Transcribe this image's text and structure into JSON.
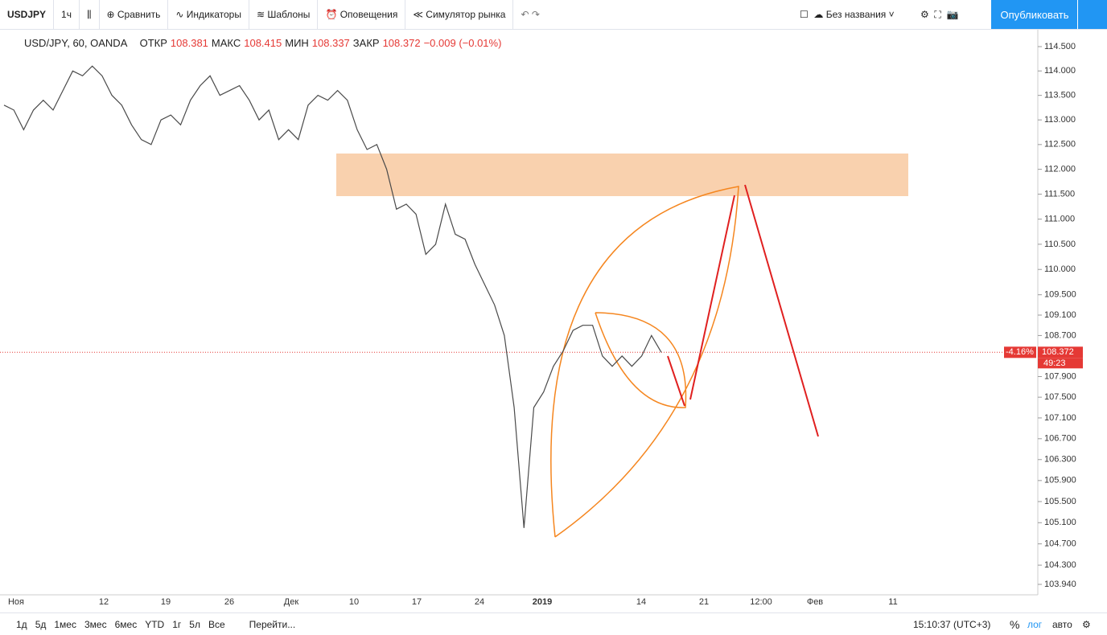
{
  "toolbar": {
    "symbol": "USDJPY",
    "interval": "1ч",
    "items": [
      "Сравнить",
      "Индикаторы",
      "Шаблоны",
      "Оповещения",
      "Симулятор рынка"
    ],
    "layout_name": "Без названия",
    "publish": "Опубликовать"
  },
  "legend": {
    "symbol": "USD/JPY, 60, OANDA",
    "open_label": "ОТКР",
    "open": "108.381",
    "high_label": "МАКС",
    "high": "108.415",
    "low_label": "МИН",
    "low": "108.337",
    "close_label": "ЗАКР",
    "close": "108.372",
    "change": "−0.009 (−0.01%)"
  },
  "chart_data": {
    "type": "line",
    "color": "#4a4a4a",
    "log_scale": true,
    "values": [
      113.3,
      113.2,
      112.8,
      113.2,
      113.4,
      113.2,
      113.6,
      114.0,
      113.9,
      114.1,
      113.9,
      113.5,
      113.3,
      112.9,
      112.6,
      112.5,
      113.0,
      113.1,
      112.9,
      113.4,
      113.7,
      113.9,
      113.5,
      113.6,
      113.7,
      113.4,
      113.0,
      113.2,
      112.6,
      112.8,
      112.6,
      113.3,
      113.5,
      113.4,
      113.6,
      113.4,
      112.8,
      112.4,
      112.5,
      112.0,
      111.2,
      111.3,
      111.1,
      110.3,
      110.5,
      111.3,
      110.7,
      110.6,
      110.1,
      109.7,
      109.3,
      108.7,
      107.3,
      105.0,
      107.3,
      107.6,
      108.1,
      108.4,
      108.8,
      108.9,
      108.9,
      108.3,
      108.1,
      108.3,
      108.1,
      108.3,
      108.7,
      108.372
    ],
    "ylim": [
      103.94,
      114.5
    ],
    "yticks": [
      {
        "value": 114.5,
        "label": "114.500"
      },
      {
        "value": 114.0,
        "label": "114.000"
      },
      {
        "value": 113.5,
        "label": "113.500"
      },
      {
        "value": 113.0,
        "label": "113.000"
      },
      {
        "value": 112.5,
        "label": "112.500"
      },
      {
        "value": 112.0,
        "label": "112.000"
      },
      {
        "value": 111.5,
        "label": "111.500"
      },
      {
        "value": 111.0,
        "label": "111.000"
      },
      {
        "value": 110.5,
        "label": "110.500"
      },
      {
        "value": 110.0,
        "label": "110.000"
      },
      {
        "value": 109.5,
        "label": "109.500"
      },
      {
        "value": 109.1,
        "label": "109.100"
      },
      {
        "value": 108.7,
        "label": "108.700"
      },
      {
        "value": 107.9,
        "label": "107.900"
      },
      {
        "value": 107.5,
        "label": "107.500"
      },
      {
        "value": 107.1,
        "label": "107.100"
      },
      {
        "value": 106.7,
        "label": "106.700"
      },
      {
        "value": 106.3,
        "label": "106.300"
      },
      {
        "value": 105.9,
        "label": "105.900"
      },
      {
        "value": 105.5,
        "label": "105.500"
      },
      {
        "value": 105.1,
        "label": "105.100"
      },
      {
        "value": 104.7,
        "label": "104.700"
      },
      {
        "value": 104.3,
        "label": "104.300"
      },
      {
        "value": 103.94,
        "label": "103.940"
      }
    ],
    "xtick_labels": [
      "Ноя",
      "12",
      "19",
      "26",
      "Дек",
      "10",
      "17",
      "24",
      "2019",
      "14",
      "21",
      "12:00",
      "Фев",
      "11"
    ],
    "price_marker": {
      "change": "-4.16%",
      "price": "108.372",
      "countdown": "49:23"
    }
  },
  "bottom": {
    "ranges": [
      "1д",
      "5д",
      "1мес",
      "3мес",
      "6мес",
      "YTD",
      "1г",
      "5л",
      "Все"
    ],
    "goto": "Перейти...",
    "clock": "15:10:37 (UTC+3)",
    "percent": "%",
    "log": "лог",
    "auto": "авто"
  }
}
